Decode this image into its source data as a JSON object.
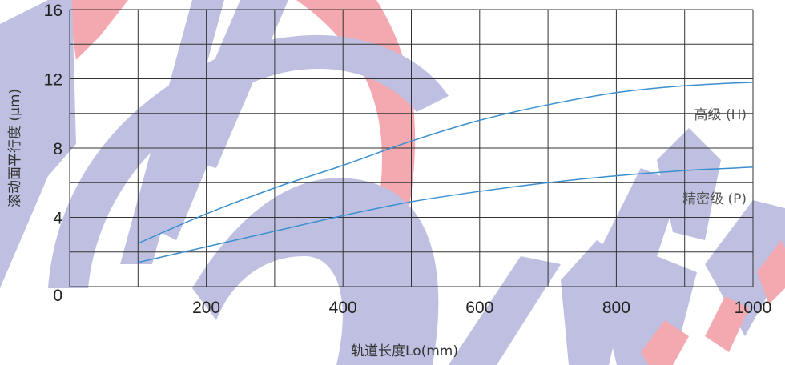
{
  "chart_data": {
    "type": "line",
    "xlabel": "轨道长度Lo(mm)",
    "ylabel": "滚动面平行度 (μm)",
    "xlim": [
      0,
      1000
    ],
    "ylim": [
      0,
      16
    ],
    "x_ticks": [
      "200",
      "400",
      "600",
      "800",
      "1000"
    ],
    "y_ticks": [
      "0",
      "4",
      "8",
      "12",
      "16"
    ],
    "y_origin_label": "0",
    "grid": true,
    "series": [
      {
        "name": "高级 (H)",
        "x": [
          100,
          200,
          300,
          400,
          500,
          600,
          700,
          800,
          900,
          1000
        ],
        "y": [
          2.5,
          4.2,
          5.7,
          7.0,
          8.4,
          9.6,
          10.5,
          11.2,
          11.6,
          11.8
        ],
        "color": "#3a8fcf"
      },
      {
        "name": "精密级 (P)",
        "x": [
          100,
          200,
          300,
          400,
          500,
          600,
          700,
          800,
          900,
          1000
        ],
        "y": [
          1.4,
          2.3,
          3.2,
          4.1,
          4.9,
          5.5,
          6.0,
          6.4,
          6.7,
          6.9
        ],
        "color": "#3a8fcf"
      }
    ]
  },
  "colors": {
    "grid": "#333333",
    "watermark_blue": "#bcbde0",
    "watermark_red": "#f4a4ab"
  }
}
